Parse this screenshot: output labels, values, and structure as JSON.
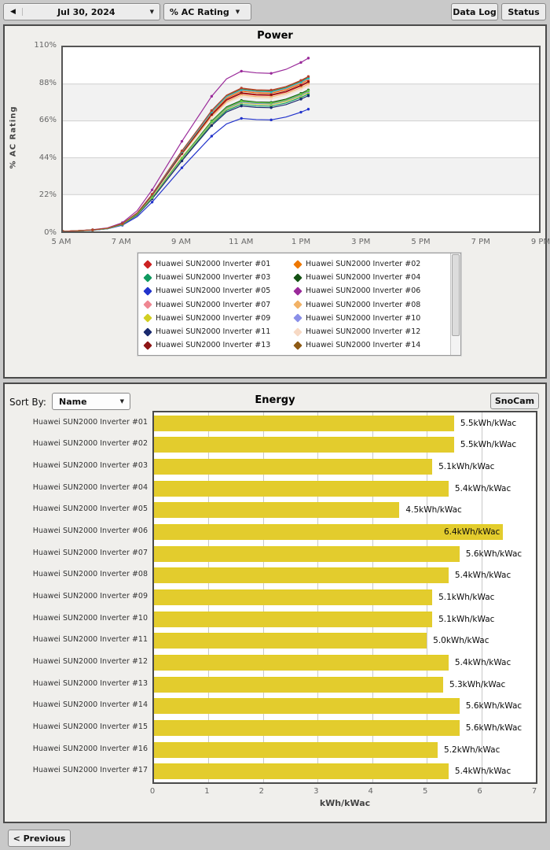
{
  "toolbar": {
    "prev_date_icon": "◀",
    "date_label": "Jul 30, 2024",
    "metric_label": "% AC Rating",
    "caret": "▼",
    "data_log_label": "Data Log",
    "status_label": "Status"
  },
  "power": {
    "title": "Power",
    "y_axis_title": "% AC Rating"
  },
  "energy": {
    "title": "Energy",
    "sort_by_label": "Sort By:",
    "sort_value": "Name",
    "snocam_label": "SnoCam",
    "x_axis_title": "kWh/kWac",
    "value_suffix": "kWh/kWac"
  },
  "footer": {
    "previous_label": "< Previous"
  },
  "colors": {
    "bar": "#e3cc2d",
    "panel_border": "#4a4a4a",
    "grid": "#cfcfcf",
    "band": "#f2f2f2"
  },
  "legend_items": [
    {
      "label": "Huawei SUN2000 Inverter #01",
      "color": "#cc2222"
    },
    {
      "label": "Huawei SUN2000 Inverter #02",
      "color": "#ee7700"
    },
    {
      "label": "Huawei SUN2000 Inverter #03",
      "color": "#109a60"
    },
    {
      "label": "Huawei SUN2000 Inverter #04",
      "color": "#145214"
    },
    {
      "label": "Huawei SUN2000 Inverter #05",
      "color": "#2233cc"
    },
    {
      "label": "Huawei SUN2000 Inverter #06",
      "color": "#9a2a9a"
    },
    {
      "label": "Huawei SUN2000 Inverter #07",
      "color": "#ef8792"
    },
    {
      "label": "Huawei SUN2000 Inverter #08",
      "color": "#f2b266"
    },
    {
      "label": "Huawei SUN2000 Inverter #09",
      "color": "#d2cf22"
    },
    {
      "label": "Huawei SUN2000 Inverter #10",
      "color": "#8a8fe8"
    },
    {
      "label": "Huawei SUN2000 Inverter #11",
      "color": "#1a2a6e"
    },
    {
      "label": "Huawei SUN2000 Inverter #12",
      "color": "#f7d9c4"
    },
    {
      "label": "Huawei SUN2000 Inverter #13",
      "color": "#8e1616"
    },
    {
      "label": "Huawei SUN2000 Inverter #14",
      "color": "#8e5a14"
    }
  ],
  "chart_data": [
    {
      "type": "line",
      "title": "Power",
      "ylabel": "% AC Rating",
      "ylim": [
        0,
        110
      ],
      "y_ticks": [
        0,
        22,
        44,
        66,
        88,
        110
      ],
      "y_tick_labels": [
        "0%",
        "22%",
        "44%",
        "66%",
        "88%",
        "110%"
      ],
      "xlim_hours": [
        5,
        21
      ],
      "x_tick_hours": [
        5,
        7,
        9,
        11,
        13,
        15,
        17,
        19,
        21
      ],
      "x_tick_labels": [
        "5 AM",
        "7 AM",
        "9 AM",
        "11 AM",
        "1 PM",
        "3 PM",
        "5 PM",
        "7 PM",
        "9 PM"
      ],
      "grid": true,
      "legend_position": "bottom",
      "x_hours": [
        5,
        5.5,
        6,
        6.5,
        7,
        7.5,
        8,
        8.5,
        9,
        9.5,
        10,
        10.5,
        11,
        11.5,
        12,
        12.5,
        13,
        13.25
      ],
      "series": [
        {
          "name": "Huawei SUN2000 Inverter #01",
          "color": "#cc2222",
          "values": [
            0,
            0.4,
            0.9,
            1.8,
            4.5,
            10.7,
            21.4,
            33.8,
            46.3,
            57.9,
            69.4,
            78.3,
            82.3,
            81.4,
            81.2,
            83.2,
            86.8,
            89.0
          ]
        },
        {
          "name": "Huawei SUN2000 Inverter #02",
          "color": "#ee7700",
          "values": [
            0,
            0.4,
            0.9,
            1.8,
            4.5,
            10.9,
            21.7,
            34.4,
            47.1,
            58.8,
            70.6,
            79.6,
            83.7,
            82.8,
            82.5,
            84.6,
            88.2,
            90.5
          ]
        },
        {
          "name": "Huawei SUN2000 Inverter #03",
          "color": "#109a60",
          "values": [
            0,
            0.3,
            0.8,
            1.6,
            4.1,
            9.8,
            19.7,
            31.2,
            42.6,
            53.3,
            64.0,
            72.2,
            75.9,
            75.0,
            74.8,
            76.7,
            80.0,
            82.0
          ]
        },
        {
          "name": "Huawei SUN2000 Inverter #04",
          "color": "#145214",
          "values": [
            0,
            0.3,
            0.8,
            1.7,
            4.2,
            10.1,
            20.3,
            32.1,
            43.9,
            54.9,
            65.9,
            74.4,
            78.2,
            77.3,
            77.1,
            79.0,
            82.4,
            84.5
          ]
        },
        {
          "name": "Huawei SUN2000 Inverter #05",
          "color": "#2233cc",
          "values": [
            0,
            0.3,
            0.7,
            1.5,
            3.7,
            8.8,
            17.5,
            27.7,
            38.0,
            47.5,
            56.9,
            64.2,
            67.5,
            66.8,
            66.6,
            68.3,
            71.2,
            73.0
          ]
        },
        {
          "name": "Huawei SUN2000 Inverter #06",
          "color": "#9a2a9a",
          "values": [
            0,
            0.4,
            1.0,
            2.1,
            5.2,
            12.4,
            24.8,
            39.3,
            53.8,
            67.3,
            80.7,
            91.1,
            95.7,
            94.7,
            94.4,
            96.8,
            100.9,
            103.5
          ]
        },
        {
          "name": "Huawei SUN2000 Inverter #07",
          "color": "#ef8792",
          "values": [
            0,
            0.4,
            0.9,
            1.8,
            4.6,
            10.9,
            21.8,
            34.6,
            47.3,
            59.2,
            71.0,
            80.1,
            84.2,
            83.3,
            83.0,
            85.1,
            88.7,
            91.0
          ]
        },
        {
          "name": "Huawei SUN2000 Inverter #08",
          "color": "#f2b266",
          "values": [
            0,
            0.4,
            0.9,
            1.8,
            4.4,
            10.6,
            21.1,
            33.4,
            45.8,
            57.2,
            68.6,
            77.4,
            81.4,
            80.5,
            80.3,
            82.3,
            85.8,
            88.0
          ]
        },
        {
          "name": "Huawei SUN2000 Inverter #09",
          "color": "#d2cf22",
          "values": [
            0,
            0.3,
            0.8,
            1.7,
            4.2,
            10.0,
            19.9,
            31.5,
            43.2,
            54.0,
            64.7,
            73.0,
            76.8,
            76.0,
            75.7,
            77.6,
            80.9,
            83.0
          ]
        },
        {
          "name": "Huawei SUN2000 Inverter #10",
          "color": "#8a8fe8",
          "values": [
            0,
            0.3,
            0.8,
            1.7,
            4.2,
            10.0,
            20.0,
            31.7,
            43.4,
            54.3,
            65.1,
            73.5,
            77.2,
            76.4,
            76.2,
            78.1,
            81.4,
            83.5
          ]
        },
        {
          "name": "Huawei SUN2000 Inverter #11",
          "color": "#1a2a6e",
          "values": [
            0,
            0.3,
            0.8,
            1.6,
            4.1,
            9.7,
            19.4,
            30.8,
            42.1,
            52.7,
            63.2,
            71.3,
            74.9,
            74.1,
            73.9,
            75.7,
            79.0,
            81.0
          ]
        },
        {
          "name": "Huawei SUN2000 Inverter #12",
          "color": "#f7d9c4",
          "values": [
            0,
            0.3,
            0.9,
            1.7,
            4.4,
            10.4,
            20.9,
            33.1,
            45.2,
            56.6,
            67.9,
            76.6,
            80.5,
            79.6,
            79.3,
            81.3,
            84.8,
            87.0
          ]
        },
        {
          "name": "Huawei SUN2000 Inverter #13",
          "color": "#8e1616",
          "values": [
            0,
            0.4,
            0.9,
            1.8,
            4.5,
            10.7,
            21.5,
            34.0,
            46.5,
            58.2,
            69.8,
            78.8,
            82.8,
            81.9,
            81.6,
            83.7,
            87.3,
            89.5
          ]
        },
        {
          "name": "Huawei SUN2000 Inverter #14",
          "color": "#8e5a14",
          "values": [
            0,
            0.4,
            0.9,
            1.8,
            4.6,
            11.0,
            22.1,
            35.0,
            47.8,
            59.8,
            71.8,
            81.0,
            85.1,
            84.2,
            83.9,
            86.0,
            89.7,
            92.0
          ]
        },
        {
          "name": "Huawei SUN2000 Inverter #15",
          "color": "#17c3c3",
          "values": [
            0,
            0.4,
            0.9,
            1.8,
            4.6,
            11.0,
            22.0,
            34.8,
            47.6,
            59.5,
            71.4,
            80.5,
            84.6,
            83.7,
            83.4,
            85.6,
            89.2,
            91.5
          ]
        },
        {
          "name": "Huawei SUN2000 Inverter #16",
          "color": "#66cc44",
          "values": [
            0,
            0.3,
            0.8,
            1.7,
            4.2,
            10.1,
            20.2,
            31.9,
            43.7,
            54.6,
            65.5,
            73.9,
            77.7,
            76.9,
            76.6,
            78.5,
            81.9,
            84.0
          ]
        },
        {
          "name": "Huawei SUN2000 Inverter #17",
          "color": "#b5412c",
          "values": [
            0,
            0.4,
            0.9,
            1.9,
            4.6,
            11.1,
            22.2,
            35.2,
            48.1,
            60.1,
            72.2,
            81.4,
            85.6,
            84.6,
            84.4,
            86.5,
            90.2,
            92.5
          ]
        }
      ]
    },
    {
      "type": "bar",
      "title": "Energy",
      "xlabel": "kWh/kWac",
      "xlim": [
        0,
        7
      ],
      "x_ticks": [
        0,
        1,
        2,
        3,
        4,
        5,
        6,
        7
      ],
      "bar_color": "#e3cc2d",
      "value_suffix": "kWh/kWac",
      "categories": [
        "Huawei SUN2000 Inverter #01",
        "Huawei SUN2000 Inverter #02",
        "Huawei SUN2000 Inverter #03",
        "Huawei SUN2000 Inverter #04",
        "Huawei SUN2000 Inverter #05",
        "Huawei SUN2000 Inverter #06",
        "Huawei SUN2000 Inverter #07",
        "Huawei SUN2000 Inverter #08",
        "Huawei SUN2000 Inverter #09",
        "Huawei SUN2000 Inverter #10",
        "Huawei SUN2000 Inverter #11",
        "Huawei SUN2000 Inverter #12",
        "Huawei SUN2000 Inverter #13",
        "Huawei SUN2000 Inverter #14",
        "Huawei SUN2000 Inverter #15",
        "Huawei SUN2000 Inverter #16",
        "Huawei SUN2000 Inverter #17"
      ],
      "values": [
        5.5,
        5.5,
        5.1,
        5.4,
        4.5,
        6.4,
        5.6,
        5.4,
        5.1,
        5.1,
        5.0,
        5.4,
        5.3,
        5.6,
        5.6,
        5.2,
        5.4
      ]
    }
  ]
}
